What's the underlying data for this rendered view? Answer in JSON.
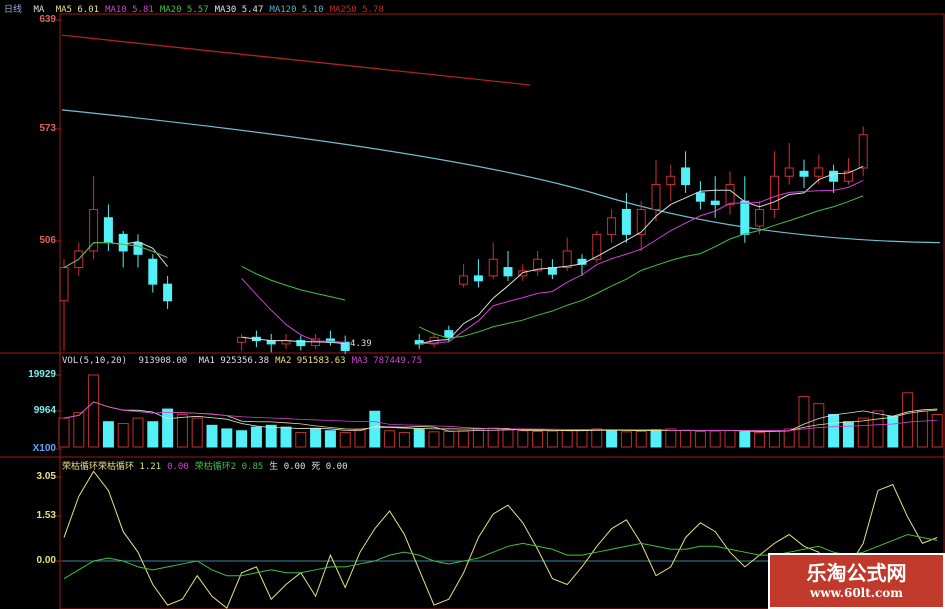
{
  "header": {
    "period": "日线",
    "ma_label": "MA",
    "ma": [
      {
        "name": "MA5",
        "value": "6.01",
        "color": "#e8e080"
      },
      {
        "name": "MA10",
        "value": "5.81",
        "color": "#d040d0"
      },
      {
        "name": "MA20",
        "value": "5.57",
        "color": "#40c040"
      },
      {
        "name": "MA30",
        "value": "5.47",
        "color": "#e0e0e0"
      },
      {
        "name": "MA120",
        "value": "5.10",
        "color": "#50b0d0"
      },
      {
        "name": "MA250",
        "value": "5.78",
        "color": "#d02020"
      }
    ]
  },
  "volume_header": {
    "title": "VOL(5,10,20)",
    "value": "913908.00",
    "ma": [
      {
        "name": "MA1",
        "value": "925356.38",
        "color": "#e0e0e0"
      },
      {
        "name": "MA2",
        "value": "951583.63",
        "color": "#e8e080"
      },
      {
        "name": "MA3",
        "value": "787449.75",
        "color": "#d040d0"
      }
    ]
  },
  "indicator_header": {
    "items": [
      {
        "name": "荣枯循环荣枯循环",
        "value": "1.21",
        "color": "#e8e080"
      },
      {
        "name": "",
        "value": "0.00",
        "color": "#d040d0"
      },
      {
        "name": "荣枯循环2",
        "value": "0.85",
        "color": "#40c040"
      },
      {
        "name": "生",
        "value": "0.00",
        "color": "#e0e0e0"
      },
      {
        "name": "死",
        "value": "0.00",
        "color": "#e0e0e0"
      }
    ]
  },
  "watermark": {
    "name": "乐淘公式网",
    "url": "www.60lt.com"
  },
  "chart_data": [
    {
      "type": "candlestick",
      "price_ticks": [
        "639",
        "573",
        "506"
      ],
      "low_label": "4.39",
      "up_color": "#d03030",
      "down_color": "#54f0f8",
      "candles": [
        [
          470,
          490,
          495,
          440
        ],
        [
          490,
          500,
          505,
          485
        ],
        [
          500,
          525,
          545,
          495
        ],
        [
          520,
          505,
          528,
          500
        ],
        [
          510,
          500,
          512,
          490
        ],
        [
          505,
          498,
          510,
          490
        ],
        [
          495,
          480,
          498,
          475
        ],
        [
          480,
          470,
          485,
          465
        ],
        null,
        null,
        null,
        null,
        [
          445,
          448,
          450,
          440
        ],
        [
          448,
          446,
          452,
          442
        ],
        [
          446,
          444,
          450,
          439
        ],
        [
          444,
          446,
          450,
          441
        ],
        [
          446,
          443,
          449,
          440
        ],
        [
          443,
          447,
          450,
          441
        ],
        [
          447,
          445,
          452,
          443
        ],
        [
          445,
          440,
          449,
          438
        ],
        null,
        null,
        null,
        null,
        [
          446,
          444,
          450,
          441
        ],
        [
          444,
          448,
          451,
          442
        ],
        [
          452,
          448,
          455,
          445
        ],
        [
          480,
          485,
          492,
          478
        ],
        [
          485,
          482,
          495,
          478
        ],
        [
          485,
          495,
          505,
          483
        ],
        [
          490,
          485,
          500,
          482
        ],
        [
          485,
          488,
          492,
          482
        ],
        [
          488,
          495,
          500,
          485
        ],
        [
          490,
          486,
          495,
          483
        ],
        [
          490,
          500,
          508,
          488
        ],
        [
          495,
          492,
          498,
          485
        ],
        [
          495,
          510,
          512,
          493
        ],
        [
          510,
          520,
          525,
          505
        ],
        [
          525,
          510,
          535,
          505
        ],
        [
          510,
          525,
          530,
          500
        ],
        [
          525,
          540,
          555,
          518
        ],
        [
          540,
          545,
          552,
          530
        ],
        [
          550,
          540,
          560,
          535
        ],
        [
          535,
          530,
          542,
          525
        ],
        [
          530,
          528,
          545,
          520
        ],
        [
          528,
          540,
          548,
          522
        ],
        [
          530,
          510,
          545,
          505
        ],
        [
          515,
          525,
          530,
          510
        ],
        [
          525,
          545,
          560,
          520
        ],
        [
          545,
          550,
          565,
          540
        ],
        [
          548,
          545,
          555,
          538
        ],
        [
          545,
          550,
          558,
          540
        ],
        [
          548,
          542,
          552,
          535
        ],
        [
          542,
          548,
          556,
          540
        ],
        [
          550,
          570,
          575,
          545
        ],
        null,
        null,
        null,
        null,
        null
      ],
      "ma250": [
        630,
        600
      ],
      "ma120": [
        585,
        505
      ]
    },
    {
      "type": "bar",
      "name": "VOL",
      "ticks": [
        "19929",
        "9964",
        "X100"
      ],
      "values": [
        8000,
        9500,
        19929,
        7000,
        6500,
        8000,
        7000,
        10500,
        9000,
        8000,
        6000,
        5000,
        4500,
        5500,
        6000,
        5500,
        4000,
        5000,
        4500,
        4000,
        5000,
        9900,
        4500,
        4000,
        5000,
        4200,
        4300,
        4500,
        5000,
        5200,
        4800,
        4500,
        4300,
        4400,
        4600,
        4800,
        5000,
        4500,
        4200,
        4300,
        4800,
        5000,
        4600,
        4300,
        4400,
        4600,
        4200,
        4000,
        4500,
        5000,
        14000,
        12000,
        9000,
        7000,
        8000,
        10000,
        8500,
        15000,
        10000,
        9000
      ],
      "down": [
        3,
        6,
        7,
        10,
        11,
        12,
        13,
        14,
        15,
        17,
        18,
        21,
        24,
        37,
        40,
        46,
        52,
        53,
        56
      ]
    },
    {
      "type": "line",
      "name": "荣枯循环",
      "ticks": [
        "3.05",
        "1.53",
        "0.00"
      ],
      "series": [
        {
          "color": "#e8e080",
          "values": [
            0.8,
            2.2,
            3.05,
            2.4,
            1.0,
            0.3,
            -0.8,
            -1.5,
            -1.3,
            -0.5,
            -1.2,
            -1.6,
            -0.4,
            -0.2,
            -1.3,
            -0.8,
            -0.4,
            -1.2,
            0.2,
            -0.9,
            0.3,
            1.1,
            1.7,
            0.9,
            -0.3,
            -1.5,
            -1.3,
            -0.4,
            0.8,
            1.6,
            1.9,
            1.3,
            0.4,
            -0.6,
            -0.8,
            -0.2,
            0.5,
            1.1,
            1.4,
            0.6,
            -0.5,
            -0.2,
            0.8,
            1.3,
            1.0,
            0.3,
            -0.2,
            0.2,
            0.6,
            0.9,
            0.5,
            0.3,
            -0.7,
            -0.2,
            0.6,
            2.4,
            2.6,
            1.5,
            0.6,
            0.8
          ]
        },
        {
          "color": "#40c040",
          "values": [
            -0.6,
            -0.3,
            0.0,
            0.1,
            0.0,
            -0.2,
            -0.3,
            -0.2,
            -0.1,
            0.0,
            -0.3,
            -0.5,
            -0.5,
            -0.4,
            -0.3,
            -0.4,
            -0.4,
            -0.3,
            -0.2,
            -0.2,
            -0.1,
            0.0,
            0.2,
            0.3,
            0.2,
            0.0,
            -0.1,
            0.0,
            0.1,
            0.3,
            0.5,
            0.6,
            0.5,
            0.4,
            0.2,
            0.2,
            0.3,
            0.4,
            0.5,
            0.6,
            0.5,
            0.4,
            0.4,
            0.5,
            0.5,
            0.4,
            0.3,
            0.2,
            0.2,
            0.3,
            0.4,
            0.5,
            0.3,
            0.2,
            0.3,
            0.5,
            0.7,
            0.9,
            0.8,
            0.7
          ]
        }
      ]
    }
  ]
}
